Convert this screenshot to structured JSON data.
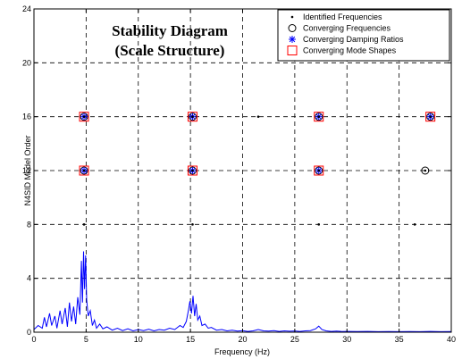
{
  "chart_data": {
    "type": "scatter",
    "title_line1": "Stability Diagram",
    "title_line2": "(Scale Structure)",
    "xlabel": "Frequency (Hz)",
    "ylabel": "N4SID Model Order",
    "xlim": [
      0,
      40
    ],
    "ylim": [
      0,
      24
    ],
    "xticks": [
      0,
      5,
      10,
      15,
      20,
      25,
      30,
      35,
      40
    ],
    "yticks": [
      0,
      4,
      8,
      12,
      16,
      20,
      24
    ],
    "grid": true,
    "legend_placement": "top-right",
    "legend": [
      {
        "key": "identified",
        "label": "Identified Frequencies",
        "marker": "dot",
        "color": "#000000"
      },
      {
        "key": "freq",
        "label": "Converging Frequencies",
        "marker": "circle",
        "color": "#000000"
      },
      {
        "key": "damp",
        "label": "Converging Damping Ratios",
        "marker": "asterisk",
        "color": "#0000ff"
      },
      {
        "key": "shape",
        "label": "Converging Mode Shapes",
        "marker": "square",
        "color": "#ff0000"
      }
    ],
    "series": [
      {
        "key": "identified",
        "points": [
          [
            4.8,
            8
          ],
          [
            15.2,
            8
          ],
          [
            27.3,
            8
          ],
          [
            36.5,
            8
          ],
          [
            4.8,
            12
          ],
          [
            15.2,
            12
          ],
          [
            27.3,
            12
          ],
          [
            37.5,
            12
          ],
          [
            4.8,
            16
          ],
          [
            15.2,
            16
          ],
          [
            21.5,
            16
          ],
          [
            27.3,
            16
          ],
          [
            38.0,
            16
          ]
        ]
      },
      {
        "key": "freq",
        "points": [
          [
            4.8,
            12
          ],
          [
            15.2,
            12
          ],
          [
            27.3,
            12
          ],
          [
            37.5,
            12
          ],
          [
            4.8,
            16
          ],
          [
            15.2,
            16
          ],
          [
            27.3,
            16
          ],
          [
            38.0,
            16
          ]
        ]
      },
      {
        "key": "damp",
        "points": [
          [
            4.8,
            12
          ],
          [
            15.2,
            12
          ],
          [
            27.3,
            12
          ],
          [
            4.8,
            16
          ],
          [
            15.2,
            16
          ],
          [
            27.3,
            16
          ],
          [
            38.0,
            16
          ]
        ]
      },
      {
        "key": "shape",
        "points": [
          [
            4.8,
            12
          ],
          [
            15.2,
            12
          ],
          [
            27.3,
            12
          ],
          [
            4.8,
            16
          ],
          [
            15.2,
            16
          ],
          [
            27.3,
            16
          ],
          [
            38.0,
            16
          ]
        ]
      }
    ],
    "spectrum": {
      "color": "#0000ff",
      "points": [
        [
          0.0,
          0.2
        ],
        [
          0.4,
          0.5
        ],
        [
          0.8,
          0.3
        ],
        [
          1.0,
          1.1
        ],
        [
          1.2,
          0.4
        ],
        [
          1.5,
          1.4
        ],
        [
          1.7,
          0.5
        ],
        [
          2.0,
          1.2
        ],
        [
          2.2,
          0.3
        ],
        [
          2.5,
          1.6
        ],
        [
          2.7,
          0.6
        ],
        [
          3.0,
          1.8
        ],
        [
          3.2,
          0.4
        ],
        [
          3.4,
          2.2
        ],
        [
          3.6,
          0.8
        ],
        [
          3.8,
          1.9
        ],
        [
          4.0,
          0.6
        ],
        [
          4.2,
          2.6
        ],
        [
          4.4,
          1.3
        ],
        [
          4.55,
          5.3
        ],
        [
          4.65,
          2.2
        ],
        [
          4.75,
          6.0
        ],
        [
          4.85,
          3.2
        ],
        [
          4.95,
          5.7
        ],
        [
          5.05,
          2.4
        ],
        [
          5.2,
          1.2
        ],
        [
          5.4,
          1.6
        ],
        [
          5.6,
          0.5
        ],
        [
          5.8,
          0.9
        ],
        [
          6.0,
          0.3
        ],
        [
          6.3,
          0.6
        ],
        [
          6.6,
          0.25
        ],
        [
          7.0,
          0.4
        ],
        [
          7.5,
          0.15
        ],
        [
          8.0,
          0.3
        ],
        [
          8.5,
          0.12
        ],
        [
          9.0,
          0.25
        ],
        [
          9.5,
          0.1
        ],
        [
          10.0,
          0.2
        ],
        [
          10.5,
          0.12
        ],
        [
          11.0,
          0.22
        ],
        [
          11.5,
          0.1
        ],
        [
          12.0,
          0.2
        ],
        [
          12.5,
          0.15
        ],
        [
          13.0,
          0.3
        ],
        [
          13.5,
          0.2
        ],
        [
          14.0,
          0.5
        ],
        [
          14.3,
          0.35
        ],
        [
          14.6,
          0.8
        ],
        [
          14.8,
          1.6
        ],
        [
          14.95,
          2.3
        ],
        [
          15.1,
          1.4
        ],
        [
          15.25,
          2.7
        ],
        [
          15.4,
          1.2
        ],
        [
          15.55,
          2.1
        ],
        [
          15.7,
          0.9
        ],
        [
          15.9,
          1.2
        ],
        [
          16.1,
          0.5
        ],
        [
          16.4,
          0.6
        ],
        [
          16.7,
          0.3
        ],
        [
          17.0,
          0.35
        ],
        [
          17.5,
          0.15
        ],
        [
          18.0,
          0.2
        ],
        [
          18.5,
          0.1
        ],
        [
          19.0,
          0.15
        ],
        [
          19.5,
          0.08
        ],
        [
          20.0,
          0.12
        ],
        [
          20.5,
          0.06
        ],
        [
          21.0,
          0.1
        ],
        [
          21.5,
          0.2
        ],
        [
          22.0,
          0.1
        ],
        [
          22.5,
          0.08
        ],
        [
          23.0,
          0.12
        ],
        [
          23.5,
          0.06
        ],
        [
          24.0,
          0.1
        ],
        [
          24.5,
          0.07
        ],
        [
          25.0,
          0.09
        ],
        [
          25.5,
          0.06
        ],
        [
          26.0,
          0.1
        ],
        [
          26.5,
          0.12
        ],
        [
          27.0,
          0.25
        ],
        [
          27.3,
          0.45
        ],
        [
          27.6,
          0.2
        ],
        [
          28.0,
          0.1
        ],
        [
          28.5,
          0.06
        ],
        [
          29.0,
          0.08
        ],
        [
          29.5,
          0.05
        ],
        [
          30.0,
          0.06
        ],
        [
          31.0,
          0.05
        ],
        [
          32.0,
          0.06
        ],
        [
          33.0,
          0.04
        ],
        [
          34.0,
          0.05
        ],
        [
          35.0,
          0.04
        ],
        [
          36.0,
          0.05
        ],
        [
          37.0,
          0.04
        ],
        [
          38.0,
          0.06
        ],
        [
          39.0,
          0.04
        ],
        [
          40.0,
          0.05
        ]
      ]
    }
  }
}
